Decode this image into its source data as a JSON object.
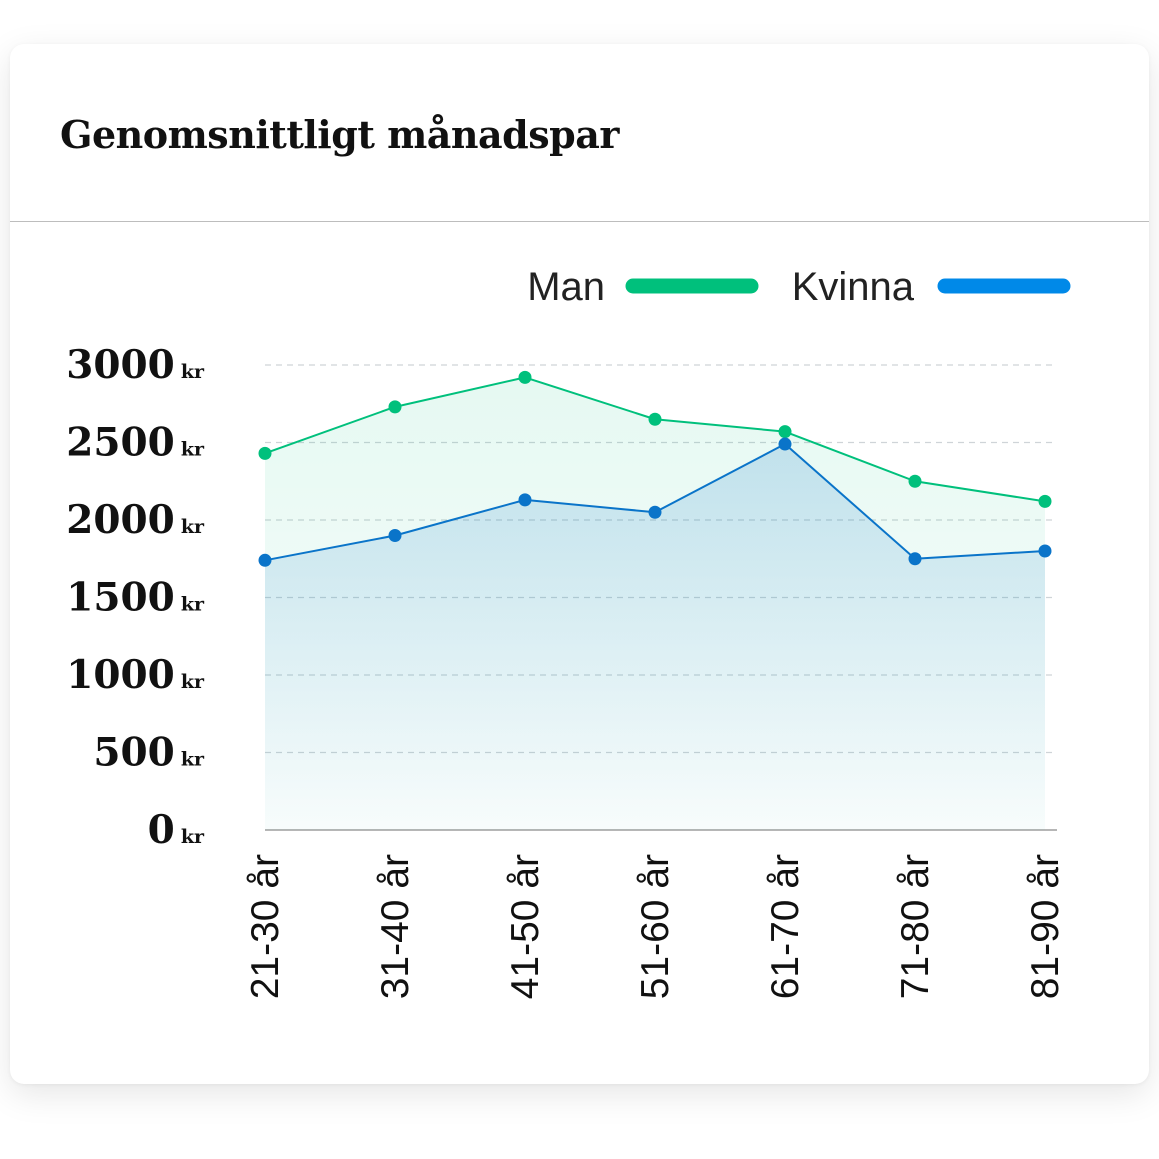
{
  "card": {
    "title": "Genomsnittligt månadspar"
  },
  "chart_data": {
    "type": "area",
    "title": "Genomsnittligt månadspar",
    "xlabel": "",
    "ylabel": "",
    "categories": [
      "21-30 år",
      "31-40 år",
      "41-50 år",
      "51-60 år",
      "61-70 år",
      "71-80 år",
      "81-90 år"
    ],
    "series": [
      {
        "name": "Man",
        "color": "#00c07c",
        "values": [
          2430,
          2730,
          2920,
          2650,
          2570,
          2250,
          2120
        ]
      },
      {
        "name": "Kvinna",
        "color": "#0a74c9",
        "legend_color": "#0089e8",
        "values": [
          1740,
          1900,
          2130,
          2050,
          2490,
          1750,
          1800
        ]
      }
    ],
    "y_ticks": [
      0,
      500,
      1000,
      1500,
      2000,
      2500,
      3000
    ],
    "y_unit": "kr",
    "ylim": [
      0,
      3000
    ],
    "grid": true,
    "legend": "top-right"
  }
}
